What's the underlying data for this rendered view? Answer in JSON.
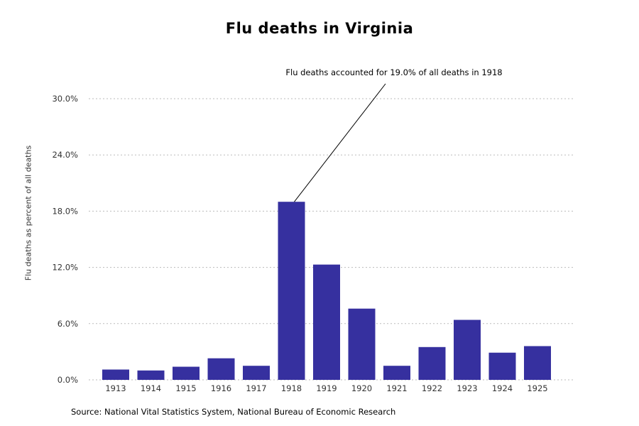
{
  "chart_data": {
    "type": "bar",
    "title": "Flu deaths in Virginia",
    "ylabel": "Flu deaths as percent of all deaths",
    "xlabel": "",
    "categories": [
      "1913",
      "1914",
      "1915",
      "1916",
      "1917",
      "1918",
      "1919",
      "1920",
      "1921",
      "1922",
      "1923",
      "1924",
      "1925"
    ],
    "values": [
      1.1,
      1.0,
      1.4,
      2.3,
      1.5,
      19.0,
      12.3,
      7.6,
      1.5,
      3.5,
      6.4,
      2.9,
      3.6
    ],
    "yticks": [
      0,
      6,
      12,
      18,
      24,
      30
    ],
    "ytick_labels": [
      "0.0%",
      "6.0%",
      "12.0%",
      "18.0%",
      "24.0%",
      "30.0%"
    ],
    "ylim": [
      0,
      30
    ],
    "grid": "horizontal-dashed",
    "legend": "none",
    "bar_color": "#36309f",
    "grid_color": "#bbbbbb",
    "annotation": {
      "text": "Flu deaths accounted for 19.0% of all deaths in 1918",
      "target_category": "1918",
      "target_value": 19.0
    },
    "source": "Source: National Vital Statistics System, National Bureau of Economic Research"
  }
}
